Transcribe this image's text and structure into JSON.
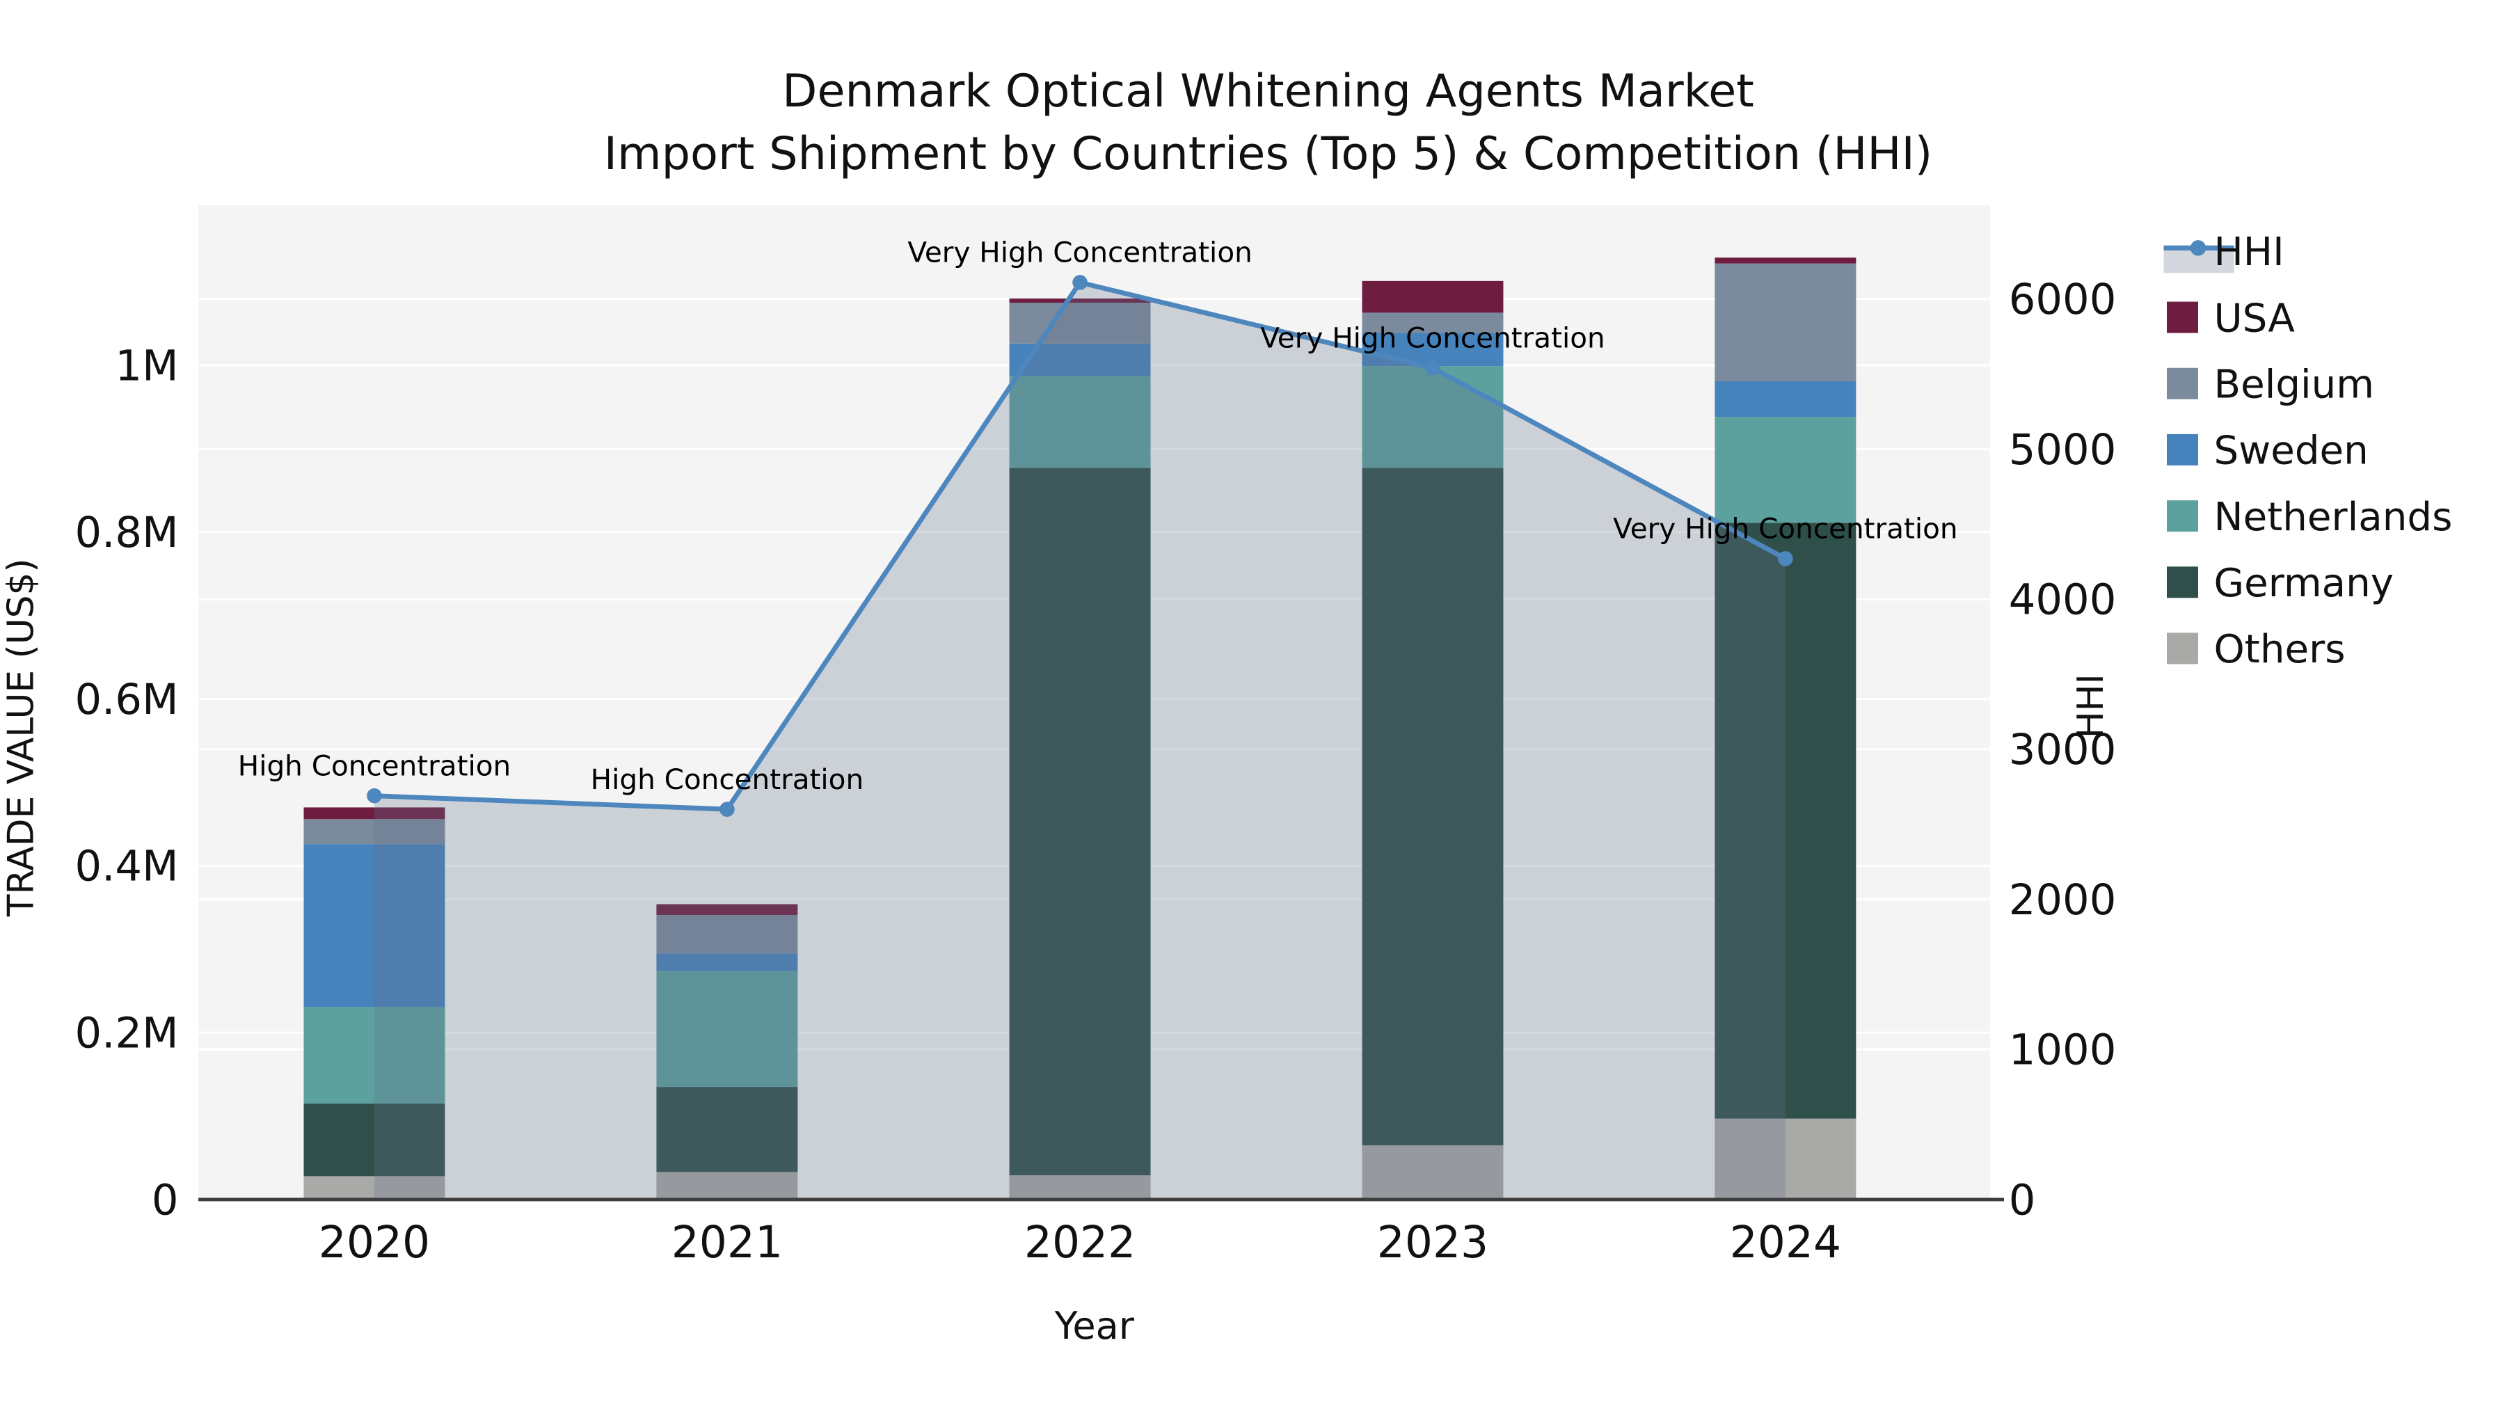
{
  "title": {
    "line1": "Denmark Optical Whitening Agents Market",
    "line2": "Import Shipment by Countries (Top 5) & Competition (HHI)"
  },
  "axes": {
    "x_title": "Year",
    "y_left_title": "TRADE VALUE (US$)",
    "y_right_title": "HHI",
    "y_left_tick_labels": [
      "0",
      "0.2M",
      "0.4M",
      "0.6M",
      "0.8M",
      "1M"
    ],
    "y_left_tick_values": [
      0,
      0.2,
      0.4,
      0.6,
      0.8,
      1.0
    ],
    "y_right_tick_labels": [
      "0",
      "1000",
      "2000",
      "3000",
      "4000",
      "5000",
      "6000"
    ],
    "y_right_tick_values": [
      0,
      1000,
      2000,
      3000,
      4000,
      5000,
      6000
    ]
  },
  "chart_data": {
    "type": "stacked-bar+line",
    "title": "Denmark Optical Whitening Agents Market — Import Shipment by Countries (Top 5) & Competition (HHI)",
    "categories": [
      "2020",
      "2021",
      "2022",
      "2023",
      "2024"
    ],
    "value_unit": "Million US$",
    "stack_order_bottom_to_top": [
      "Others",
      "Germany",
      "Netherlands",
      "Sweden",
      "Belgium",
      "USA"
    ],
    "series": [
      {
        "name": "Others",
        "color": "#a9a9a7",
        "values": [
          0.028,
          0.033,
          0.029,
          0.065,
          0.097
        ]
      },
      {
        "name": "Germany",
        "color": "#2f4f4a",
        "values": [
          0.087,
          0.102,
          0.848,
          0.812,
          0.714
        ]
      },
      {
        "name": "Netherlands",
        "color": "#5ca19e",
        "values": [
          0.116,
          0.139,
          0.11,
          0.122,
          0.127
        ]
      },
      {
        "name": "Sweden",
        "color": "#4682bc",
        "values": [
          0.195,
          0.021,
          0.039,
          0.04,
          0.043
        ]
      },
      {
        "name": "Belgium",
        "color": "#7b8a9c",
        "values": [
          0.03,
          0.046,
          0.049,
          0.024,
          0.141
        ]
      },
      {
        "name": "USA",
        "color": "#6e1d40",
        "values": [
          0.014,
          0.013,
          0.005,
          0.038,
          0.007
        ]
      }
    ],
    "bar_totals": [
      0.47,
      0.354,
      1.08,
      1.101,
      1.129
    ],
    "line_series": {
      "name": "HHI",
      "color": "#4d87bd",
      "area_fill": "rgba(100,115,140,0.28)",
      "values": [
        2690,
        2600,
        6110,
        5540,
        4270
      ]
    },
    "annotations": [
      "High Concentration",
      "High Concentration",
      "Very High Concentration",
      "Very High Concentration",
      "Very High Concentration"
    ],
    "legend_order": [
      "HHI",
      "USA",
      "Belgium",
      "Sweden",
      "Netherlands",
      "Germany",
      "Others"
    ],
    "ylim_left": [
      0,
      1.19
    ],
    "ylim_right": [
      0,
      6630
    ],
    "grid": true,
    "legend_position": "right-outside"
  },
  "colors": {
    "plot_bg": "#f4f4f4",
    "gridline": "#ffffff",
    "axis_line": "#3d3d3d",
    "text": "#111111",
    "hhi_line": "#4d87bd",
    "hhi_area": "rgba(100,115,140,0.28)",
    "legend_area_band": "#d4d8de"
  }
}
